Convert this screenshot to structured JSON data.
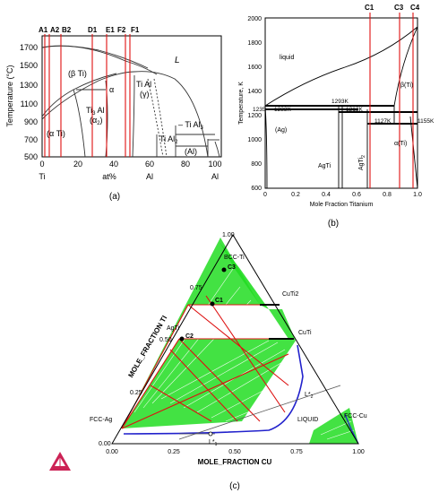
{
  "panel_a": {
    "caption": "(a)",
    "ylabel": "Temperature (°C)",
    "y_ticks": [
      "1700",
      "1500",
      "1300",
      "1100",
      "900",
      "700",
      "500"
    ],
    "x_ticks": [
      "0",
      "20",
      "40",
      "60",
      "80",
      "100"
    ],
    "x_end_left": "Ti",
    "x_mid": "at%",
    "x_mid_right": "Al",
    "x_end_right": "Al",
    "markers": [
      "A1",
      "A2",
      "B2",
      "D1",
      "E1",
      "F2",
      "F1"
    ],
    "phases": {
      "liquid": "L",
      "beta": "(β Ti)",
      "alpha_small": "α",
      "alpha": "(α Ti)",
      "ti3al_1": "Ti",
      "ti3al_sub": "3",
      "ti3al_2": " Al",
      "alpha2": "(α",
      "alpha2_sub": "2",
      "alpha2_end": ")",
      "tial": "Ti Al",
      "gamma": "(γ)",
      "tial3": "Ti Al",
      "tial3_sub": "3",
      "tial2": "Ti Al",
      "tial2_sub": "2",
      "al": "(Al)"
    }
  },
  "panel_b": {
    "caption": "(b)",
    "ylabel": "Temperature, K",
    "xlabel": "Mole Fraction Titanium",
    "y_ticks": [
      "2000",
      "1800",
      "1600",
      "1400",
      "1200",
      "1000",
      "800",
      "600"
    ],
    "x_ticks": [
      "0",
      "0.2",
      "0.4",
      "0.6",
      "0.8",
      "1.0"
    ],
    "markers": [
      "C1",
      "C3",
      "C4"
    ],
    "labels": {
      "liquid": "liquid",
      "beta": "β(Ti)",
      "alpha": "α(Ti)",
      "ag": "(Ag)",
      "agti": "AgTi",
      "agti2": "AgTi",
      "agti2_sub": "2",
      "t1235": "1235",
      "t1233": "1233K",
      "t1293": "1293K",
      "t1213": "1213K",
      "t1127": "1127K",
      "t1155": "1155K"
    }
  },
  "panel_c": {
    "caption": "(c)",
    "left_axis_title": "MOLE_FRACTION TI",
    "bottom_axis_title": "MOLE_FRACTION CU",
    "left_ticks": [
      "0.00",
      "0.25",
      "0.50",
      "0.75",
      "1.00"
    ],
    "bottom_ticks": [
      "0.00",
      "0.25",
      "0.50",
      "0.75",
      "1.00"
    ],
    "phase_labels": [
      "BCC-Ti",
      "CuTi2",
      "CuTi",
      "AgTi",
      "FCC-Ag",
      "LIQUID",
      "FCC-Cu"
    ],
    "points": [
      "C3",
      "C1",
      "C2"
    ],
    "lstar2": "L*",
    "lstar2_sub": "2",
    "lstar1": "L*",
    "lstar1_sub": "1",
    "colors": {
      "tie": "#22dd22",
      "boundary": "#dd1111",
      "liquid": "#2222cc",
      "logo": "#cc2255"
    }
  },
  "colors": {
    "marker_line": "#e01010",
    "axis": "#000000"
  }
}
